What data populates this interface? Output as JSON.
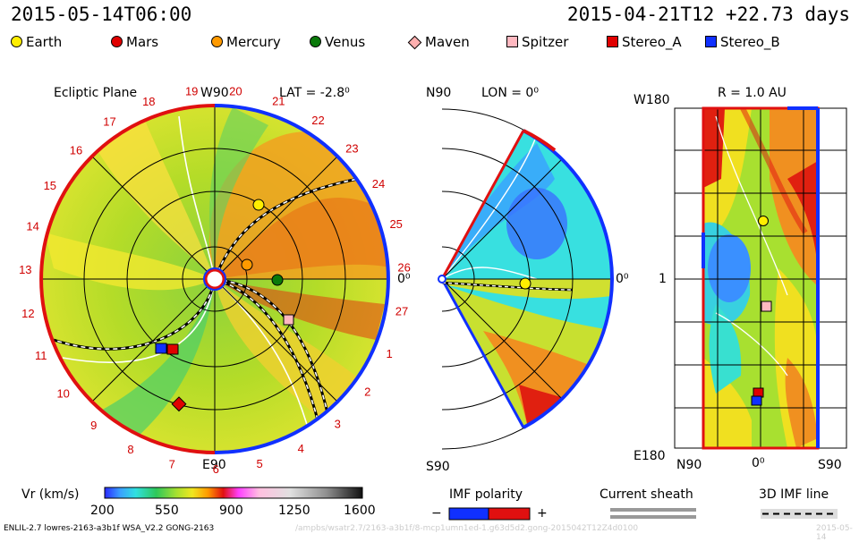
{
  "header": {
    "left_timestamp": "2015-05-14T06:00",
    "right_timestamp": "2015-04-21T12 +22.73 days"
  },
  "legend": [
    {
      "label": "Earth",
      "color": "#ffee00",
      "shape": "circle"
    },
    {
      "label": "Mars",
      "color": "#e00000",
      "shape": "circle"
    },
    {
      "label": "Mercury",
      "color": "#ff9a00",
      "shape": "circle"
    },
    {
      "label": "Venus",
      "color": "#0a7a0a",
      "shape": "circle"
    },
    {
      "label": "Maven",
      "color": "#ffb0b0",
      "shape": "diamond"
    },
    {
      "label": "Spitzer",
      "color": "#ffb8c0",
      "shape": "square"
    },
    {
      "label": "Stereo_A",
      "color": "#e00000",
      "shape": "square"
    },
    {
      "label": "Stereo_B",
      "color": "#1030ff",
      "shape": "square"
    }
  ],
  "panels": {
    "ecliptic": {
      "title": "Ecliptic Plane",
      "lat_label": "LAT = -2.8⁰",
      "top_label": "W90",
      "bottom_label": "E90",
      "right_label": "0⁰",
      "clock_numbers": [
        "19",
        "20",
        "21",
        "22",
        "23",
        "24",
        "25",
        "26",
        "27",
        "1",
        "2",
        "3",
        "4",
        "5",
        "6",
        "7",
        "8",
        "9",
        "10",
        "11",
        "12",
        "13",
        "14",
        "15",
        "16",
        "17",
        "18"
      ]
    },
    "meridional": {
      "top_label": "N90",
      "lon_label": "LON = 0⁰",
      "bottom_label": "S90",
      "right_label": "0⁰"
    },
    "radial": {
      "r_label": "R = 1.0 AU",
      "top_left_label": "W180",
      "middle_left_label": "1",
      "bottom_left_label": "E180",
      "x_labels": [
        "N90",
        "0⁰",
        "S90"
      ]
    }
  },
  "colorbar": {
    "title": "Vr (km/s)",
    "ticks": [
      "200",
      "550",
      "900",
      "1250",
      "1600"
    ],
    "range": [
      200,
      1600
    ]
  },
  "imf_polarity": {
    "title": "IMF polarity",
    "minus": "−",
    "plus": "+"
  },
  "current_sheath": {
    "title": "Current sheath"
  },
  "imf_line": {
    "title": "3D IMF line"
  },
  "footer": {
    "model": "ENLIL-2.7 lowres-2163-a3b1f WSA_V2.2 GONG-2163",
    "path": "/ampbs/wsatr2.7/2163-a3b1f/8-mcp1umn1ed-1.g63d5d2.gong-2015042T12Z4d0100",
    "right": "2015-05-14"
  },
  "chart_data": [
    {
      "type": "heatmap",
      "title": "Ecliptic Plane",
      "quantity": "Vr (km/s)",
      "colorbar_range": [
        200,
        1600
      ],
      "bodies": [
        {
          "name": "Earth",
          "color": "#ffee00"
        },
        {
          "name": "Mercury",
          "color": "#ff9a00"
        },
        {
          "name": "Venus",
          "color": "#0a7a0a"
        },
        {
          "name": "Mars",
          "color": "#e00000"
        },
        {
          "name": "Spitzer",
          "color": "#ffb8c0"
        },
        {
          "name": "Stereo_A",
          "color": "#e00000"
        },
        {
          "name": "Stereo_B",
          "color": "#1030ff"
        }
      ]
    },
    {
      "type": "heatmap",
      "title": "LON = 0⁰",
      "quantity": "Vr (km/s)"
    },
    {
      "type": "heatmap",
      "title": "R = 1.0 AU",
      "quantity": "Vr (km/s)"
    }
  ]
}
